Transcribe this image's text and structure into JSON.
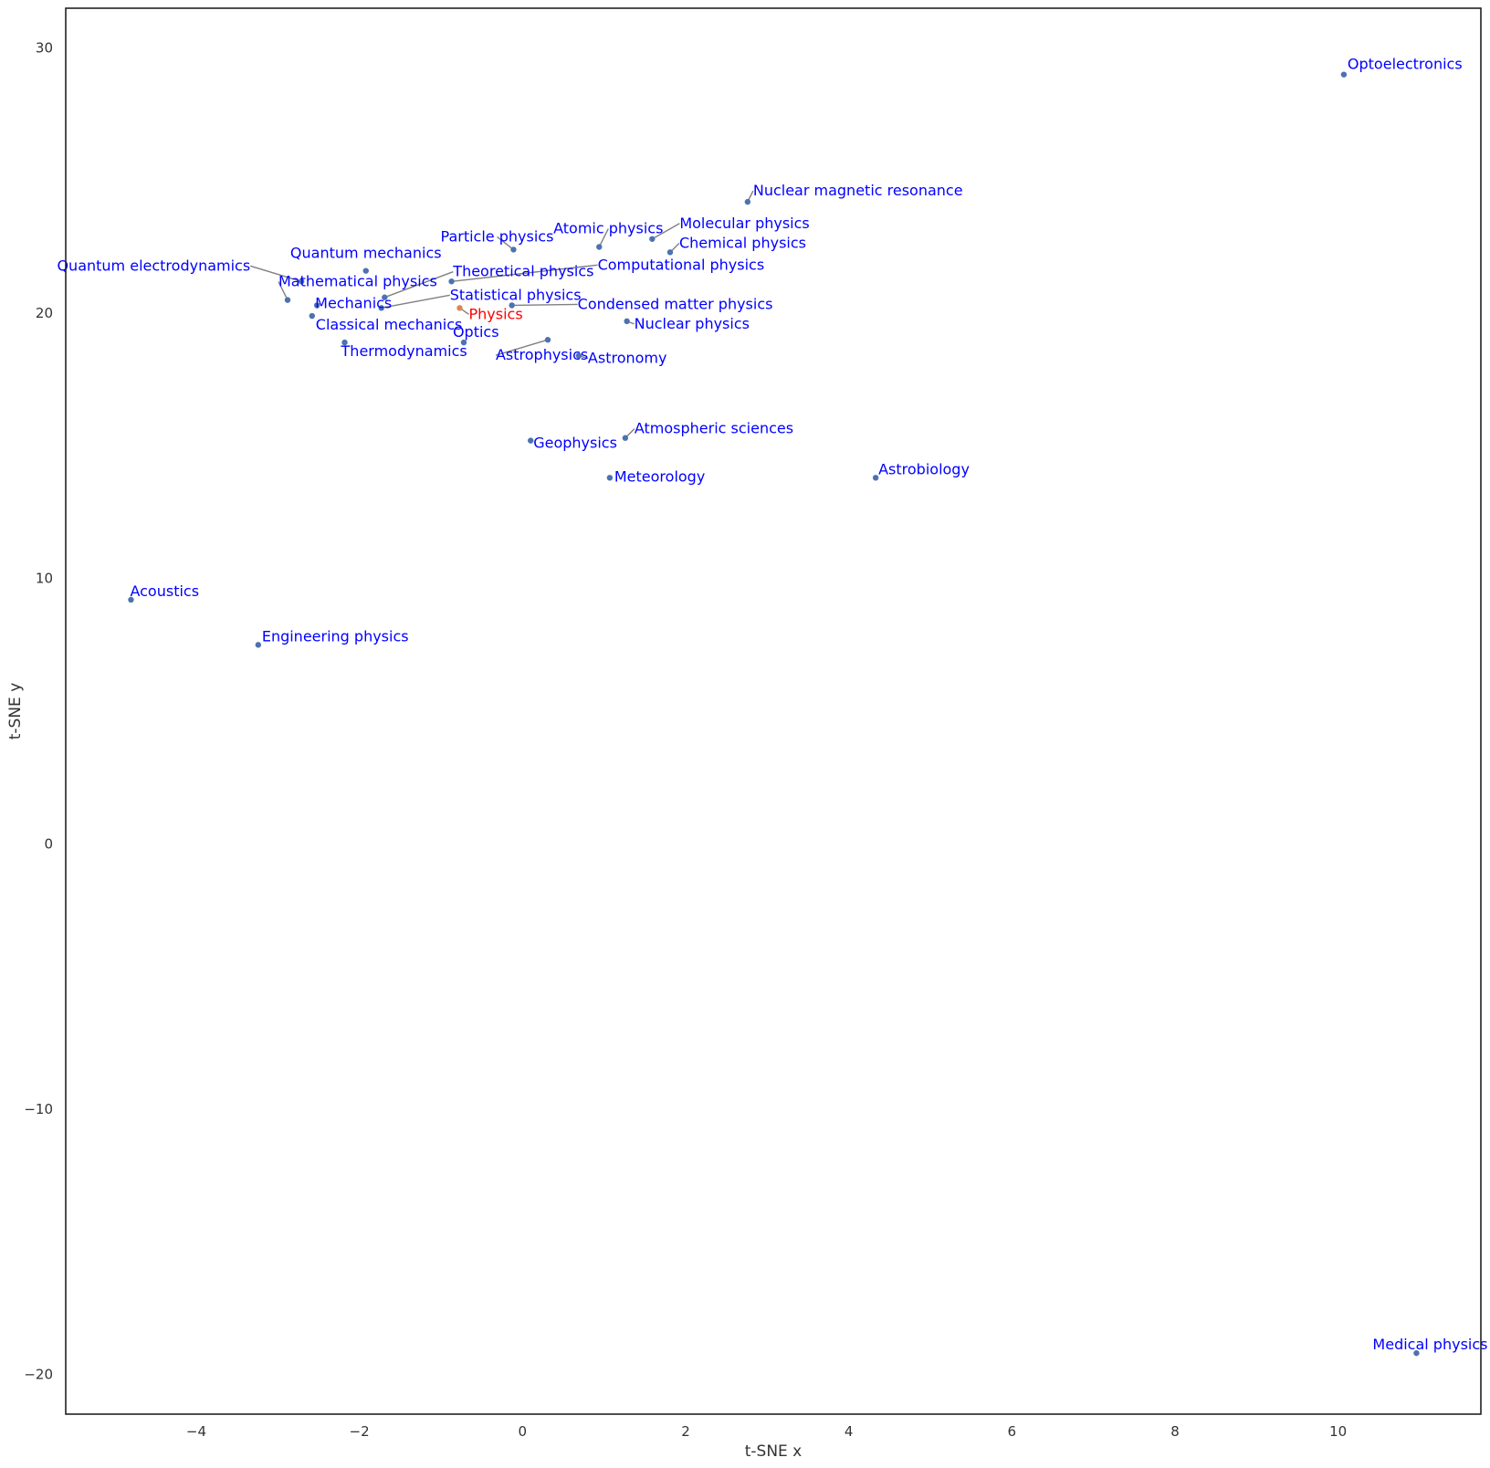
{
  "chart_data": {
    "type": "scatter",
    "xlabel": "t-SNE x",
    "ylabel": "t-SNE y",
    "xlim": [
      -5.6,
      11.75
    ],
    "ylim": [
      -21.5,
      31.5
    ],
    "xticks": [
      -4,
      -2,
      0,
      2,
      4,
      6,
      8,
      10
    ],
    "yticks": [
      -20,
      -10,
      0,
      10,
      20,
      30
    ],
    "grid": false,
    "colors": {
      "point": "#4c72b0",
      "highlight_point": "#dd8452",
      "label": "#0000ff",
      "highlight_label": "#ff0000",
      "leader": "#808080"
    },
    "points": [
      {
        "label": "Optoelectronics",
        "x": 10.07,
        "y": 29.0
      },
      {
        "label": "Nuclear magnetic resonance",
        "x": 2.76,
        "y": 24.2
      },
      {
        "label": "Molecular physics",
        "x": 1.59,
        "y": 22.8
      },
      {
        "label": "Atomic physics",
        "x": 0.94,
        "y": 22.5
      },
      {
        "label": "Chemical physics",
        "x": 1.81,
        "y": 22.3
      },
      {
        "label": "Particle physics",
        "x": -0.11,
        "y": 22.4
      },
      {
        "label": "Quantum mechanics",
        "x": -1.92,
        "y": 21.6
      },
      {
        "label": "Computational physics",
        "x": -0.87,
        "y": 21.2
      },
      {
        "label": "Quantum electrodynamics",
        "x": -2.71,
        "y": 21.2
      },
      {
        "label": "Theoretical physics",
        "x": -1.69,
        "y": 20.6
      },
      {
        "label": "Mathematical physics",
        "x": -2.88,
        "y": 20.5
      },
      {
        "label": "Mechanics",
        "x": -2.52,
        "y": 20.3
      },
      {
        "label": "Statistical physics",
        "x": -1.73,
        "y": 20.2
      },
      {
        "label": "Condensed matter physics",
        "x": -0.13,
        "y": 20.3
      },
      {
        "label": "Physics",
        "x": -0.77,
        "y": 20.2,
        "highlight": true
      },
      {
        "label": "Classical mechanics",
        "x": -2.58,
        "y": 19.9
      },
      {
        "label": "Nuclear physics",
        "x": 1.28,
        "y": 19.7
      },
      {
        "label": "Thermodynamics",
        "x": -2.18,
        "y": 18.9
      },
      {
        "label": "Optics",
        "x": -0.72,
        "y": 18.9
      },
      {
        "label": "Astrophysics",
        "x": 0.31,
        "y": 19.0
      },
      {
        "label": "Astronomy",
        "x": 0.69,
        "y": 18.4
      },
      {
        "label": "Atmospheric sciences",
        "x": 1.26,
        "y": 15.3
      },
      {
        "label": "Geophysics",
        "x": 0.1,
        "y": 15.2
      },
      {
        "label": "Meteorology",
        "x": 1.07,
        "y": 13.8
      },
      {
        "label": "Astrobiology",
        "x": 4.33,
        "y": 13.8
      },
      {
        "label": "Acoustics",
        "x": -4.8,
        "y": 9.2
      },
      {
        "label": "Engineering physics",
        "x": -3.24,
        "y": 7.5
      },
      {
        "label": "Medical physics",
        "x": 10.96,
        "y": -19.2
      }
    ]
  }
}
